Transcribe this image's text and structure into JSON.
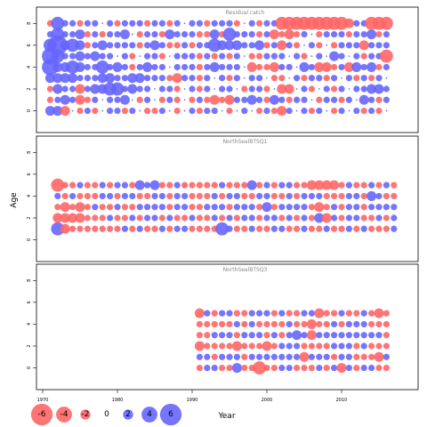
{
  "chart_data": {
    "type": "scatter",
    "xlabel": "Year",
    "ylabel": "Age",
    "x_ticks": [
      1970,
      1980,
      1990,
      2000,
      2010
    ],
    "y_ticks": [
      0,
      2,
      4,
      6,
      8
    ],
    "xlim": [
      1969,
      2019
    ],
    "legend": {
      "placement": "bottom-left",
      "entries": [
        {
          "label": "-6",
          "value": -6,
          "color": "#ff6666"
        },
        {
          "label": "-4",
          "value": -4,
          "color": "#ff6666"
        },
        {
          "label": "-2",
          "value": -2,
          "color": "#ff6666"
        },
        {
          "label": "0",
          "value": 0,
          "color": ""
        },
        {
          "label": "2",
          "value": 2,
          "color": "#6666ff"
        },
        {
          "label": "4",
          "value": 4,
          "color": "#6666ff"
        },
        {
          "label": "6",
          "value": 6,
          "color": "#6666ff"
        }
      ]
    },
    "colors": {
      "negative": "#ff6666",
      "positive": "#6666ff"
    },
    "panels": [
      {
        "title": "Residual catch",
        "ylim": [
          -1.5,
          9
        ],
        "years": [
          1971,
          2016
        ],
        "ages": [
          0,
          1,
          2,
          3,
          4,
          5,
          6,
          7,
          8
        ],
        "rows": [
          [
            2,
            2,
            -2,
            0,
            -1,
            1,
            -1,
            0,
            1,
            1,
            -1,
            1,
            0,
            -1,
            -1,
            1,
            0,
            -1,
            0,
            1,
            -1,
            1,
            1,
            0,
            -1,
            0,
            1,
            0,
            -1,
            1,
            -1,
            -2,
            1,
            0,
            1,
            -1,
            1,
            0,
            -1,
            1,
            0,
            1,
            -1,
            1,
            -1,
            0
          ],
          [
            -1,
            1,
            2,
            1,
            -2,
            -1,
            1,
            0,
            1,
            1,
            2,
            0,
            -1,
            1,
            0,
            -1,
            1,
            -1,
            0,
            -1,
            1,
            -1,
            -2,
            -1,
            -2,
            1,
            1,
            2,
            1,
            -1,
            2,
            1,
            -1,
            1,
            1,
            0,
            -1,
            1,
            1,
            -1,
            1,
            0,
            2,
            1,
            -1,
            1
          ],
          [
            -1,
            2,
            1,
            1,
            -2,
            1,
            2,
            2,
            3,
            3,
            1,
            2,
            1,
            1,
            0,
            1,
            1,
            -1,
            0,
            1,
            -1,
            1,
            0,
            1,
            1,
            0,
            -1,
            1,
            1,
            -1,
            0,
            -2,
            -2,
            0,
            1,
            -1,
            0,
            1,
            -1,
            1,
            0,
            1,
            1,
            2,
            2,
            1
          ],
          [
            2,
            2,
            2,
            2,
            1,
            1,
            1,
            2,
            2,
            1,
            1,
            2,
            2,
            1,
            1,
            1,
            -1,
            -2,
            1,
            1,
            -1,
            1,
            0,
            1,
            -1,
            1,
            0,
            1,
            1,
            0,
            -1,
            -1,
            0,
            1,
            -1,
            1,
            1,
            -1,
            1,
            0,
            1,
            -1,
            1,
            -1,
            1,
            0
          ],
          [
            4,
            2,
            2,
            3,
            2,
            1,
            1,
            3,
            1,
            2,
            1,
            -1,
            1,
            2,
            1,
            1,
            0,
            1,
            1,
            1,
            -1,
            1,
            2,
            1,
            1,
            1,
            0,
            -2,
            -1,
            -1,
            -2,
            1,
            1,
            0,
            2,
            1,
            -2,
            -2,
            -1,
            1,
            -2,
            2,
            1,
            2,
            -1,
            1
          ],
          [
            4,
            3,
            1,
            1,
            2,
            1,
            2,
            1,
            1,
            0,
            1,
            -1,
            0,
            1,
            1,
            -1,
            0,
            1,
            1,
            1,
            -1,
            1,
            -1,
            1,
            -1,
            1,
            0,
            -1,
            -1,
            1,
            1,
            1,
            0,
            1,
            -1,
            0,
            1,
            0,
            2,
            1,
            0,
            1,
            -1,
            1,
            1,
            -3
          ],
          [
            3,
            5,
            2,
            3,
            2,
            -1,
            1,
            2,
            1,
            1,
            1,
            1,
            -1,
            1,
            2,
            1,
            -1,
            -1,
            1,
            -1,
            1,
            1,
            3,
            2,
            2,
            2,
            1,
            1,
            2,
            -1,
            1,
            -2,
            1,
            -1,
            0,
            1,
            -1,
            0,
            -1,
            1,
            1,
            1,
            -2,
            1,
            1,
            1
          ],
          [
            1,
            3,
            1,
            1,
            2,
            -1,
            1,
            -1,
            1,
            1,
            2,
            0,
            -1,
            1,
            1,
            -1,
            2,
            1,
            1,
            1,
            -1,
            -1,
            2,
            -1,
            3,
            1,
            1,
            1,
            -1,
            1,
            -2,
            -1,
            -2,
            -1,
            1,
            0,
            -1,
            1,
            1,
            1,
            -1,
            1,
            1,
            2,
            -1,
            1
          ],
          [
            -1,
            3,
            1,
            1,
            -1,
            1,
            1,
            0,
            1,
            -1,
            1,
            1,
            1,
            -1,
            1,
            1,
            -1,
            1,
            0,
            1,
            1,
            -1,
            1,
            1,
            1,
            -1,
            0,
            1,
            -1,
            1,
            1,
            -3,
            -3,
            -3,
            -3,
            -3,
            -3,
            -3,
            -3,
            -3,
            -2,
            1,
            1,
            -3,
            -3,
            -3
          ]
        ]
      },
      {
        "title": "NorthSealBTSQ1",
        "ylim": [
          -1.5,
          9
        ],
        "years": [
          1972,
          2017
        ],
        "ages": [
          1,
          2,
          3,
          4,
          5
        ],
        "rows": [
          [
            3,
            -2,
            -1,
            -1,
            -1,
            -1,
            -1,
            -1,
            -1,
            1,
            -1,
            1,
            -1,
            -1,
            1,
            -1,
            1,
            1,
            -1,
            -1,
            -1,
            -1,
            3,
            1,
            -1,
            -1,
            1,
            -1,
            -1,
            1,
            1,
            -1,
            -1,
            1,
            -1,
            -1,
            1,
            -1,
            -1,
            1,
            -1,
            1,
            -1,
            -1,
            -1,
            1
          ],
          [
            -2,
            -2,
            -2,
            -2,
            -1,
            -1,
            -1,
            1,
            -1,
            -1,
            1,
            -1,
            1,
            1,
            -1,
            1,
            -1,
            -1,
            1,
            -1,
            -1,
            1,
            -1,
            1,
            -1,
            1,
            1,
            -1,
            1,
            1,
            -1,
            1,
            -1,
            1,
            -1,
            2,
            -2,
            1,
            -1,
            1,
            1,
            -1,
            -1,
            1,
            -1,
            1
          ],
          [
            -1,
            -2,
            -1,
            -2,
            -1,
            1,
            -1,
            -1,
            1,
            -1,
            -1,
            1,
            1,
            1,
            1,
            -1,
            1,
            1,
            -1,
            -1,
            1,
            1,
            1,
            -1,
            1,
            1,
            1,
            -1,
            2,
            -1,
            1,
            1,
            1,
            1,
            -1,
            -2,
            -1,
            1,
            -1,
            1,
            1,
            -1,
            1,
            1,
            1,
            1
          ],
          [
            1,
            -1,
            1,
            -1,
            -1,
            -1,
            1,
            1,
            -1,
            1,
            1,
            -1,
            -1,
            1,
            1,
            -1,
            1,
            1,
            -1,
            -1,
            -1,
            1,
            -1,
            1,
            1,
            -1,
            -1,
            1,
            1,
            -1,
            -1,
            1,
            -1,
            1,
            1,
            1,
            -1,
            -1,
            -1,
            1,
            1,
            -1,
            2,
            1,
            -1,
            -1
          ],
          [
            -3,
            -1,
            -1,
            1,
            -1,
            -1,
            1,
            -1,
            1,
            1,
            -1,
            2,
            1,
            2,
            -1,
            -1,
            1,
            -1,
            -1,
            -1,
            -1,
            -1,
            1,
            -1,
            -1,
            -1,
            2,
            -1,
            1,
            -1,
            1,
            1,
            -1,
            -1,
            -2,
            -2,
            -2,
            -2,
            -1,
            1,
            -1,
            -1,
            1,
            -1,
            1,
            -1
          ]
        ]
      },
      {
        "title": "NorthSealBTSQ3",
        "ylim": [
          -1.5,
          9
        ],
        "years": [
          1991,
          2016
        ],
        "ages": [
          0,
          1,
          2,
          3,
          4,
          5
        ],
        "rows": [
          [
            -1,
            1,
            1,
            -1,
            -1,
            2,
            -1,
            -1,
            -3,
            -1,
            -1,
            1,
            1,
            -1,
            -1,
            -1,
            1,
            -1,
            1,
            -2,
            1,
            -1,
            1,
            1,
            -1,
            -1
          ],
          [
            1,
            1,
            -1,
            1,
            1,
            1,
            -1,
            1,
            1,
            1,
            1,
            1,
            1,
            1,
            -2,
            1,
            1,
            1,
            -1,
            1,
            1,
            -1,
            -1,
            -1,
            -2,
            1
          ],
          [
            -2,
            -1,
            -1,
            -1,
            -1,
            -2,
            -1,
            -1,
            -1,
            -2,
            -1,
            1,
            1,
            1,
            -1,
            -1,
            -1,
            -1,
            1,
            1,
            1,
            -1,
            1,
            -1,
            -1,
            -1
          ],
          [
            -1,
            -1,
            1,
            1,
            1,
            -1,
            1,
            1,
            1,
            -1,
            1,
            -1,
            1,
            2,
            1,
            -2,
            1,
            1,
            1,
            1,
            1,
            1,
            1,
            1,
            1,
            -1
          ],
          [
            -1,
            -1,
            -1,
            -1,
            -1,
            1,
            -1,
            1,
            -1,
            -1,
            -1,
            -1,
            1,
            -1,
            -1,
            -2,
            -1,
            -1,
            1,
            -1,
            1,
            1,
            1,
            -1,
            -1,
            -1
          ],
          [
            -2,
            1,
            -1,
            1,
            1,
            -1,
            -1,
            1,
            1,
            1,
            -1,
            1,
            -1,
            -1,
            1,
            1,
            -2,
            -1,
            -1,
            1,
            -1,
            -1,
            1,
            -1,
            -2,
            -1
          ]
        ]
      }
    ]
  }
}
